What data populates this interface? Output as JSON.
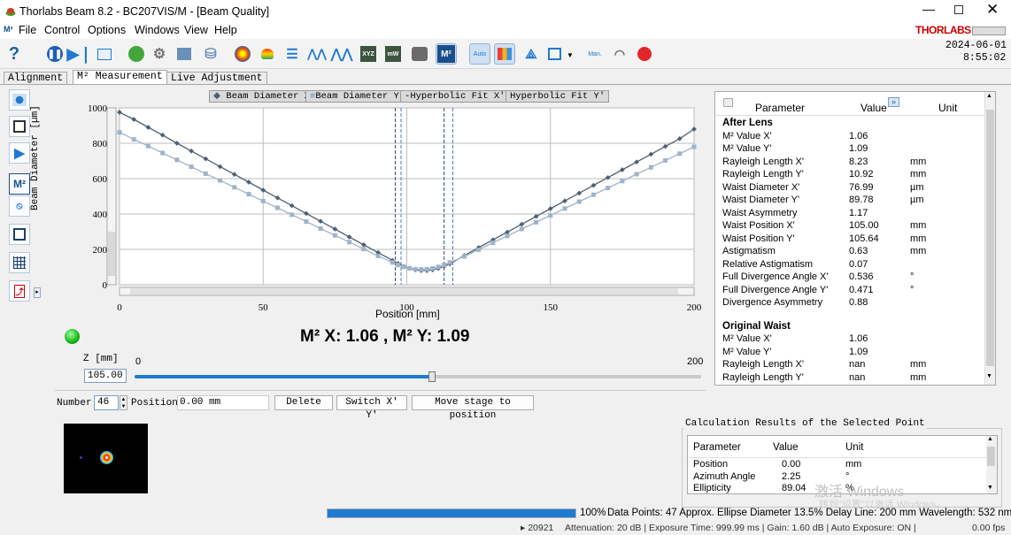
{
  "window": {
    "title": "Thorlabs Beam 8.2 - BC207VIS/M - [Beam Quality]",
    "brand": "THORLABS",
    "datetime_date": "2024-06-01",
    "datetime_time": "8:55:02",
    "accent": "#cc0000"
  },
  "menu": [
    "File",
    "Control",
    "Options",
    "Windows",
    "View",
    "Help"
  ],
  "toolbar": {
    "help_label": "?",
    "m2_label": "M²",
    "auto_label": "Auto",
    "manual_label": "Man."
  },
  "tabs": [
    "Alignment",
    "M² Measurement",
    "Live Adjustment"
  ],
  "sidebar": {
    "m2_label": "M²"
  },
  "legend": [
    "Beam Diameter X'",
    "Beam Diameter Y'",
    "Hyperbolic Fit X'",
    "Hyperbolic Fit Y'"
  ],
  "chart_data": {
    "type": "line",
    "xlabel": "Position [mm]",
    "ylabel": "Beam Diameter [µm]",
    "xlim": [
      0,
      200
    ],
    "ylim": [
      0,
      1000
    ],
    "x_ticks": [
      0,
      50,
      100,
      150,
      200
    ],
    "y_ticks": [
      0,
      200,
      400,
      600,
      800,
      1000
    ],
    "grid": true,
    "series": [
      {
        "name": "Beam Diameter X'",
        "color": "#4f6073",
        "x": [
          0,
          5,
          10,
          15,
          20,
          25,
          30,
          35,
          40,
          45,
          50,
          55,
          60,
          65,
          70,
          75,
          80,
          85,
          90,
          95,
          97,
          99,
          101,
          103,
          105,
          107,
          109,
          111,
          113,
          115,
          120,
          125,
          130,
          135,
          140,
          145,
          150,
          155,
          160,
          165,
          170,
          175,
          180,
          185,
          190,
          195,
          200
        ],
        "values": [
          975,
          935,
          890,
          846,
          800,
          756,
          712,
          668,
          624,
          580,
          535,
          491,
          447,
          403,
          359,
          315,
          270,
          226,
          182,
          138,
          120,
          104,
          92,
          84,
          80,
          80,
          84,
          92,
          104,
          118,
          165,
          210,
          254,
          298,
          342,
          386,
          430,
          474,
          518,
          562,
          606,
          650,
          694,
          738,
          782,
          826,
          880
        ]
      },
      {
        "name": "Beam Diameter Y'",
        "color": "#9fb3c9",
        "x": [
          0,
          5,
          10,
          15,
          20,
          25,
          30,
          35,
          40,
          45,
          50,
          55,
          60,
          65,
          70,
          75,
          80,
          85,
          90,
          95,
          97,
          99,
          101,
          103,
          105,
          107,
          109,
          111,
          113,
          115,
          120,
          125,
          130,
          135,
          140,
          145,
          150,
          155,
          160,
          165,
          170,
          175,
          180,
          185,
          190,
          195,
          200
        ],
        "values": [
          862,
          822,
          784,
          745,
          706,
          667,
          628,
          590,
          551,
          512,
          473,
          435,
          396,
          357,
          318,
          279,
          241,
          202,
          163,
          126,
          112,
          101,
          93,
          88,
          87,
          88,
          93,
          101,
          112,
          126,
          160,
          198,
          237,
          276,
          315,
          353,
          392,
          431,
          470,
          509,
          547,
          586,
          625,
          664,
          703,
          741,
          780
        ]
      }
    ]
  },
  "headline": "M² X: 1.06 , M² Y: 1.09",
  "zcontrol": {
    "label": "Z [mm]",
    "min": "0",
    "max": "200",
    "value": "105.00",
    "position_fraction": 0.525
  },
  "params": {
    "col_parameter": "Parameter",
    "col_value": "Value",
    "col_unit": "Unit",
    "section1": "After Lens",
    "rows1": [
      [
        "M² Value X'",
        "1.06",
        ""
      ],
      [
        "M² Value Y'",
        "1.09",
        ""
      ],
      [
        "Rayleigh Length X'",
        "8.23",
        "mm"
      ],
      [
        "Rayleigh Length Y'",
        "10.92",
        "mm"
      ],
      [
        "Waist Diameter X'",
        "76.99",
        "µm"
      ],
      [
        "Waist Diameter Y'",
        "89.78",
        "µm"
      ],
      [
        "Waist Asymmetry",
        "1.17",
        ""
      ],
      [
        "Waist Position X'",
        "105.00",
        "mm"
      ],
      [
        "Waist Position Y'",
        "105.64",
        "mm"
      ],
      [
        "Astigmatism",
        "0.63",
        "mm"
      ],
      [
        "Relative Astigmatism",
        "0.07",
        ""
      ],
      [
        "Full Divergence Angle X'",
        "0.536",
        "°"
      ],
      [
        "Full Divergence Angle Y'",
        "0.471",
        "°"
      ],
      [
        "Divergence Asymmetry",
        "0.88",
        ""
      ]
    ],
    "section2": "Original Waist",
    "rows2": [
      [
        "M² Value X'",
        "1.06",
        ""
      ],
      [
        "M² Value Y'",
        "1.09",
        ""
      ],
      [
        "Rayleigh Length X'",
        "nan",
        "mm"
      ],
      [
        "Rayleigh Length Y'",
        "nan",
        "mm"
      ]
    ]
  },
  "points": {
    "number_label": "Number",
    "number_value": "46",
    "position_label": "Position",
    "position_value": "0.00 mm",
    "delete": "Delete",
    "switch": "Switch X' Y'",
    "move": "Move stage to position"
  },
  "calc": {
    "title": "Calculation Results of the Selected Point",
    "col_parameter": "Parameter",
    "col_value": "Value",
    "col_unit": "Unit",
    "rows": [
      [
        "Position",
        "0.00",
        "mm"
      ],
      [
        "Azimuth Angle",
        "2.25",
        "°"
      ],
      [
        "Ellipticity",
        "89.04",
        "%"
      ]
    ]
  },
  "watermark": {
    "line1": "激活 Windows",
    "line2": "转到\"设置\"以激活 Windows。"
  },
  "status": {
    "progress_text": "100%",
    "progress_fraction": 1.0,
    "info": "Data Points: 47 Approx. Ellipse Diameter 13.5% Delay Line: 200 mm Wavelength: 532 nm",
    "frames": "▸ 20921",
    "bottom": "Attenuation: 20 dB | Exposure Time: 999.99 ms | Gain: 1.60 dB | Auto Exposure: ON |",
    "fps": "0.00 fps"
  }
}
